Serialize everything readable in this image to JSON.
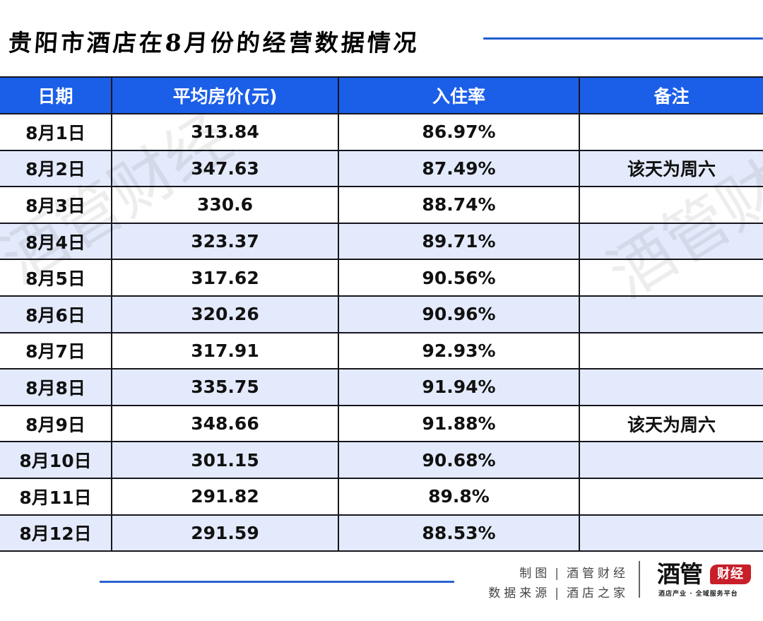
{
  "header": {
    "title": "贵阳市酒店在8月份的经营数据情况"
  },
  "watermark": {
    "text": "酒管财经"
  },
  "table": {
    "columns": [
      "日期",
      "平均房价(元)",
      "入住率",
      "备注"
    ],
    "rows": [
      {
        "date": "8月1日",
        "avg_price": "313.84",
        "occupancy": "86.97%",
        "note": ""
      },
      {
        "date": "8月2日",
        "avg_price": "347.63",
        "occupancy": "87.49%",
        "note": "该天为周六"
      },
      {
        "date": "8月3日",
        "avg_price": "330.6",
        "occupancy": "88.74%",
        "note": ""
      },
      {
        "date": "8月4日",
        "avg_price": "323.37",
        "occupancy": "89.71%",
        "note": ""
      },
      {
        "date": "8月5日",
        "avg_price": "317.62",
        "occupancy": "90.56%",
        "note": ""
      },
      {
        "date": "8月6日",
        "avg_price": "320.26",
        "occupancy": "90.96%",
        "note": ""
      },
      {
        "date": "8月7日",
        "avg_price": "317.91",
        "occupancy": "92.93%",
        "note": ""
      },
      {
        "date": "8月8日",
        "avg_price": "335.75",
        "occupancy": "91.94%",
        "note": ""
      },
      {
        "date": "8月9日",
        "avg_price": "348.66",
        "occupancy": "91.88%",
        "note": "该天为周六"
      },
      {
        "date": "8月10日",
        "avg_price": "301.15",
        "occupancy": "90.68%",
        "note": ""
      },
      {
        "date": "8月11日",
        "avg_price": "291.82",
        "occupancy": "89.8%",
        "note": ""
      },
      {
        "date": "8月12日",
        "avg_price": "291.59",
        "occupancy": "88.53%",
        "note": ""
      }
    ]
  },
  "footer": {
    "credit_label_1": "制图",
    "credit_value_1": "酒管财经",
    "credit_label_2": "数据来源",
    "credit_value_2": "酒店之家",
    "separator": "|",
    "logo_main": "酒管",
    "logo_badge": "财经",
    "logo_tagline": "酒店产业 · 全域服务平台"
  },
  "colors": {
    "header_bg": "#1b5ee8",
    "row_alt_bg": "#e3eafb",
    "accent_rule": "#1f5fd1",
    "logo_red": "#c8202a"
  }
}
